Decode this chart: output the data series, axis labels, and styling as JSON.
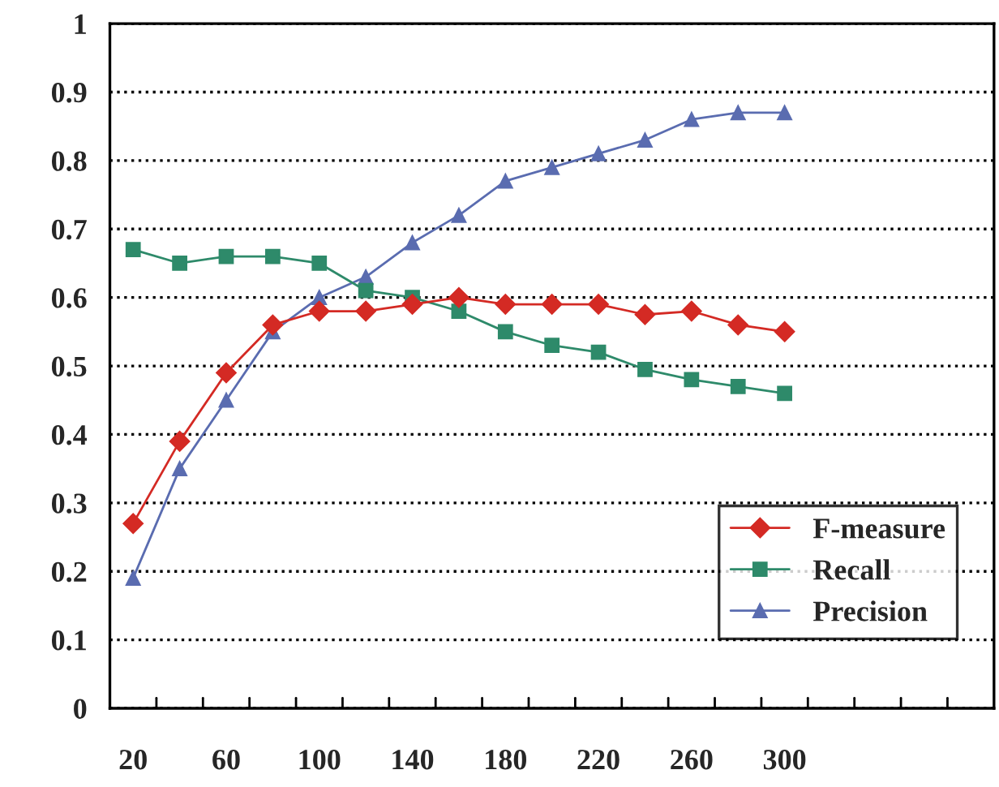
{
  "chart_data": {
    "type": "line",
    "categories": [
      "20",
      null,
      "60",
      null,
      "100",
      null,
      "140",
      null,
      "180",
      null,
      "220",
      null,
      "260",
      null,
      "300",
      null,
      null,
      null,
      null
    ],
    "series": [
      {
        "name": "F-measure",
        "color": "#d42a24",
        "marker": "diamond",
        "values": [
          0.27,
          0.39,
          0.49,
          0.56,
          0.58,
          0.58,
          0.59,
          0.6,
          0.59,
          0.59,
          0.59,
          0.575,
          0.58,
          0.56,
          0.55,
          null,
          null,
          null,
          null
        ]
      },
      {
        "name": "Recall",
        "color": "#2e8a6a",
        "marker": "square",
        "values": [
          0.67,
          0.65,
          0.66,
          0.66,
          0.65,
          0.61,
          0.6,
          0.58,
          0.55,
          0.53,
          0.52,
          0.495,
          0.48,
          0.47,
          0.46,
          null,
          null,
          null,
          null
        ]
      },
      {
        "name": "Precision",
        "color": "#5a6cb0",
        "marker": "triangle",
        "values": [
          0.19,
          0.35,
          0.45,
          0.55,
          0.6,
          0.63,
          0.68,
          0.72,
          0.77,
          0.79,
          0.81,
          0.83,
          0.86,
          0.87,
          0.87,
          null,
          null,
          null,
          null
        ]
      }
    ],
    "ylim": [
      0,
      1
    ],
    "yticks": [
      0,
      0.1,
      0.2,
      0.3,
      0.4,
      0.5,
      0.6,
      0.7,
      0.8,
      0.9,
      1
    ],
    "grid": "y",
    "legend": "bottom right"
  }
}
